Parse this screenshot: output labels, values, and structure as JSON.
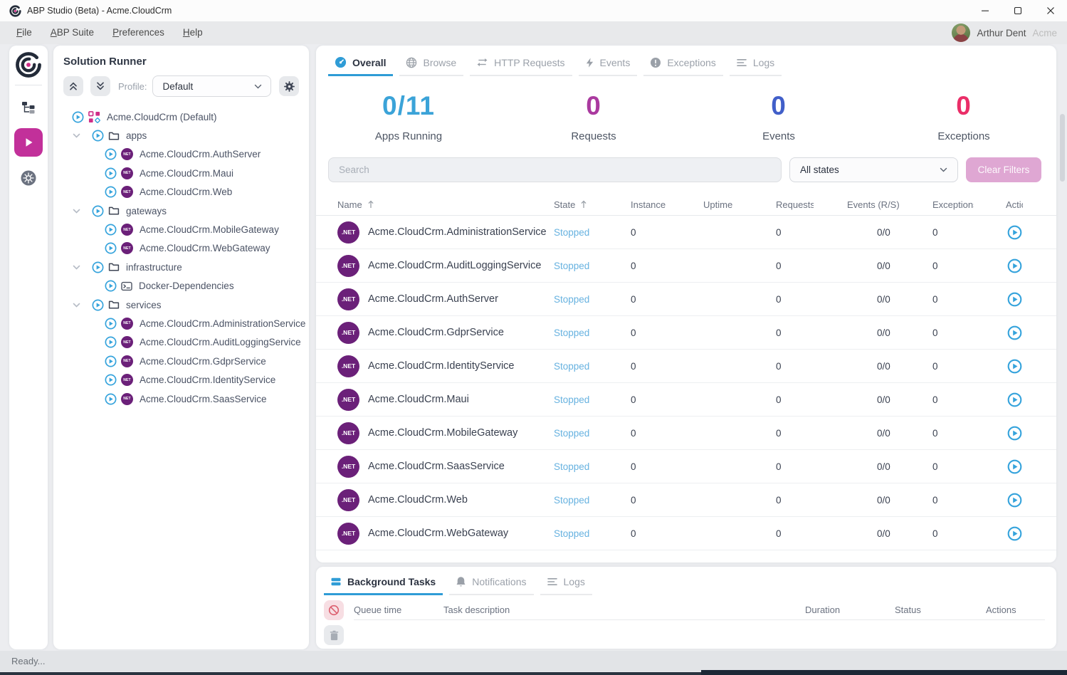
{
  "window": {
    "title": "ABP Studio (Beta) - Acme.CloudCrm",
    "status_text": "Ready..."
  },
  "menubar": {
    "items": [
      "File",
      "ABP Suite",
      "Preferences",
      "Help"
    ],
    "user_name": "Arthur Dent",
    "user_org": "Acme"
  },
  "runner": {
    "title": "Solution Runner",
    "profile_label": "Profile:",
    "profile_value": "Default",
    "net_badge_label": "NET",
    "tree": [
      {
        "level": 0,
        "chevron": false,
        "badge": "grid",
        "label": "Acme.CloudCrm (Default)"
      },
      {
        "level": 0,
        "chevron": true,
        "badge": "folder",
        "label": "apps"
      },
      {
        "level": 1,
        "chevron": false,
        "badge": "net",
        "label": "Acme.CloudCrm.AuthServer"
      },
      {
        "level": 1,
        "chevron": false,
        "badge": "net",
        "label": "Acme.CloudCrm.Maui"
      },
      {
        "level": 1,
        "chevron": false,
        "badge": "net",
        "label": "Acme.CloudCrm.Web"
      },
      {
        "level": 0,
        "chevron": true,
        "badge": "folder",
        "label": "gateways"
      },
      {
        "level": 1,
        "chevron": false,
        "badge": "net",
        "label": "Acme.CloudCrm.MobileGateway"
      },
      {
        "level": 1,
        "chevron": false,
        "badge": "net",
        "label": "Acme.CloudCrm.WebGateway"
      },
      {
        "level": 0,
        "chevron": true,
        "badge": "folder",
        "label": "infrastructure"
      },
      {
        "level": 1,
        "chevron": false,
        "badge": "terminal",
        "label": "Docker-Dependencies"
      },
      {
        "level": 0,
        "chevron": true,
        "badge": "folder",
        "label": "services"
      },
      {
        "level": 1,
        "chevron": false,
        "badge": "net",
        "label": "Acme.CloudCrm.AdministrationService"
      },
      {
        "level": 1,
        "chevron": false,
        "badge": "net",
        "label": "Acme.CloudCrm.AuditLoggingService"
      },
      {
        "level": 1,
        "chevron": false,
        "badge": "net",
        "label": "Acme.CloudCrm.GdprService"
      },
      {
        "level": 1,
        "chevron": false,
        "badge": "net",
        "label": "Acme.CloudCrm.IdentityService"
      },
      {
        "level": 1,
        "chevron": false,
        "badge": "net",
        "label": "Acme.CloudCrm.SaasService"
      }
    ]
  },
  "main": {
    "tabs": [
      {
        "label": "Overall",
        "icon": "gauge",
        "active": true
      },
      {
        "label": "Browse",
        "icon": "globe",
        "active": false
      },
      {
        "label": "HTTP Requests",
        "icon": "arrows",
        "active": false
      },
      {
        "label": "Events",
        "icon": "lightning",
        "active": false
      },
      {
        "label": "Exceptions",
        "icon": "exclamation",
        "active": false
      },
      {
        "label": "Logs",
        "icon": "lines",
        "active": false
      }
    ],
    "stats": [
      {
        "value": "0/11",
        "label": "Apps Running",
        "color": "#3ba3d8"
      },
      {
        "value": "0",
        "label": "Requests",
        "color": "#aa3a9f"
      },
      {
        "value": "0",
        "label": "Events",
        "color": "#415fc9"
      },
      {
        "value": "0",
        "label": "Exceptions",
        "color": "#ea2e68"
      }
    ],
    "filters": {
      "search_placeholder": "Search",
      "state_filter_value": "All states",
      "clear_button_label": "Clear Filters"
    },
    "table": {
      "net_badge_label": ".NET",
      "state_color": "#67b2e0",
      "columns": [
        {
          "label": "Name",
          "sortable": true
        },
        {
          "label": "State",
          "sortable": true
        },
        {
          "label": "Instance",
          "sortable": false
        },
        {
          "label": "Uptime",
          "sortable": false
        },
        {
          "label": "Requests",
          "sortable": false
        },
        {
          "label": "Events (R/S)",
          "sortable": false
        },
        {
          "label": "Exceptions",
          "sortable": false
        },
        {
          "label": "Actions",
          "sortable": false
        }
      ],
      "rows": [
        {
          "name": "Acme.CloudCrm.AdministrationService",
          "state": "Stopped",
          "instance": "0",
          "uptime": "",
          "requests": "0",
          "events": "0/0",
          "exceptions": "0"
        },
        {
          "name": "Acme.CloudCrm.AuditLoggingService",
          "state": "Stopped",
          "instance": "0",
          "uptime": "",
          "requests": "0",
          "events": "0/0",
          "exceptions": "0"
        },
        {
          "name": "Acme.CloudCrm.AuthServer",
          "state": "Stopped",
          "instance": "0",
          "uptime": "",
          "requests": "0",
          "events": "0/0",
          "exceptions": "0"
        },
        {
          "name": "Acme.CloudCrm.GdprService",
          "state": "Stopped",
          "instance": "0",
          "uptime": "",
          "requests": "0",
          "events": "0/0",
          "exceptions": "0"
        },
        {
          "name": "Acme.CloudCrm.IdentityService",
          "state": "Stopped",
          "instance": "0",
          "uptime": "",
          "requests": "0",
          "events": "0/0",
          "exceptions": "0"
        },
        {
          "name": "Acme.CloudCrm.Maui",
          "state": "Stopped",
          "instance": "0",
          "uptime": "",
          "requests": "0",
          "events": "0/0",
          "exceptions": "0"
        },
        {
          "name": "Acme.CloudCrm.MobileGateway",
          "state": "Stopped",
          "instance": "0",
          "uptime": "",
          "requests": "0",
          "events": "0/0",
          "exceptions": "0"
        },
        {
          "name": "Acme.CloudCrm.SaasService",
          "state": "Stopped",
          "instance": "0",
          "uptime": "",
          "requests": "0",
          "events": "0/0",
          "exceptions": "0"
        },
        {
          "name": "Acme.CloudCrm.Web",
          "state": "Stopped",
          "instance": "0",
          "uptime": "",
          "requests": "0",
          "events": "0/0",
          "exceptions": "0"
        },
        {
          "name": "Acme.CloudCrm.WebGateway",
          "state": "Stopped",
          "instance": "0",
          "uptime": "",
          "requests": "0",
          "events": "0/0",
          "exceptions": "0"
        }
      ]
    }
  },
  "bottom_panel": {
    "tabs": [
      {
        "label": "Background Tasks",
        "icon": "stack",
        "active": true
      },
      {
        "label": "Notifications",
        "icon": "bell",
        "active": false
      },
      {
        "label": "Logs",
        "icon": "lines",
        "active": false
      }
    ],
    "columns": [
      "Queue time",
      "Task description",
      "Duration",
      "Status",
      "Actions"
    ]
  }
}
